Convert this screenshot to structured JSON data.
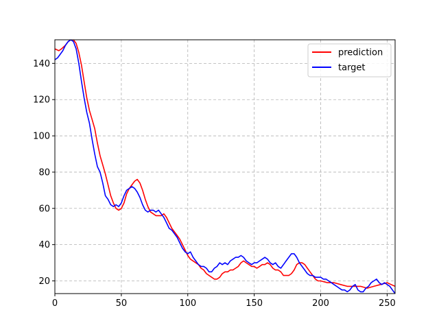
{
  "chart_data": {
    "type": "line",
    "title": "",
    "xlabel": "",
    "ylabel": "",
    "xlim": [
      0,
      256
    ],
    "ylim": [
      13,
      153
    ],
    "xticks": [
      0,
      50,
      100,
      150,
      200,
      250
    ],
    "yticks": [
      20,
      40,
      60,
      80,
      100,
      120,
      140
    ],
    "grid": true,
    "legend_position": "top-right",
    "series": [
      {
        "name": "prediction",
        "color": "#ff0000",
        "x": [
          0,
          3,
          5,
          8,
          10,
          12,
          14,
          16,
          18,
          20,
          22,
          24,
          26,
          28,
          30,
          32,
          34,
          36,
          38,
          40,
          42,
          44,
          46,
          48,
          50,
          52,
          54,
          56,
          58,
          60,
          62,
          64,
          66,
          68,
          70,
          72,
          74,
          76,
          78,
          80,
          82,
          84,
          86,
          88,
          90,
          92,
          94,
          96,
          98,
          100,
          102,
          104,
          106,
          108,
          110,
          112,
          114,
          116,
          118,
          120,
          122,
          124,
          126,
          128,
          130,
          132,
          134,
          136,
          138,
          140,
          142,
          144,
          146,
          148,
          150,
          152,
          154,
          156,
          158,
          160,
          162,
          164,
          166,
          168,
          170,
          172,
          174,
          176,
          178,
          180,
          182,
          184,
          186,
          188,
          190,
          192,
          194,
          196,
          198,
          200,
          205,
          210,
          215,
          220,
          225,
          230,
          235,
          240,
          245,
          250,
          253,
          256
        ],
        "y": [
          148,
          147,
          148,
          150,
          152,
          153,
          153,
          151,
          146,
          139,
          130,
          121,
          114,
          109,
          104,
          96,
          89,
          84,
          79,
          73,
          67,
          63,
          60,
          59,
          60,
          63,
          68,
          71,
          73,
          75,
          76,
          74,
          70,
          65,
          61,
          58,
          57,
          56,
          56,
          56,
          57,
          55,
          52,
          49,
          47,
          45,
          43,
          40,
          37,
          34,
          32,
          31,
          30,
          29,
          27,
          26,
          24,
          23,
          22,
          21,
          21,
          22,
          24,
          25,
          25,
          26,
          26,
          27,
          28,
          30,
          31,
          30,
          29,
          28,
          28,
          27,
          28,
          29,
          29,
          30,
          29,
          27,
          26,
          26,
          25,
          23,
          23,
          23,
          24,
          26,
          29,
          30,
          30,
          29,
          27,
          25,
          23,
          21,
          20,
          20,
          19,
          19,
          18,
          17,
          17,
          17,
          16,
          17,
          18,
          19,
          18,
          17
        ]
      },
      {
        "name": "target",
        "color": "#0000ff",
        "x": [
          0,
          2,
          4,
          6,
          8,
          10,
          12,
          14,
          16,
          18,
          20,
          22,
          24,
          26,
          28,
          30,
          32,
          34,
          36,
          38,
          40,
          42,
          44,
          46,
          48,
          50,
          52,
          54,
          56,
          58,
          60,
          62,
          64,
          66,
          68,
          70,
          72,
          74,
          76,
          78,
          80,
          82,
          84,
          86,
          88,
          90,
          92,
          94,
          96,
          98,
          100,
          102,
          104,
          106,
          108,
          110,
          112,
          114,
          116,
          118,
          120,
          122,
          124,
          126,
          128,
          130,
          132,
          134,
          136,
          138,
          140,
          142,
          144,
          146,
          148,
          150,
          152,
          154,
          156,
          158,
          160,
          162,
          164,
          166,
          168,
          170,
          172,
          174,
          176,
          178,
          180,
          182,
          184,
          186,
          188,
          190,
          192,
          194,
          196,
          198,
          200,
          202,
          204,
          206,
          208,
          210,
          212,
          214,
          216,
          218,
          220,
          222,
          224,
          226,
          228,
          230,
          232,
          234,
          236,
          238,
          240,
          242,
          244,
          246,
          248,
          250,
          252,
          254,
          256
        ],
        "y": [
          142,
          143,
          145,
          147,
          150,
          152,
          153,
          152,
          148,
          140,
          130,
          121,
          113,
          107,
          98,
          90,
          83,
          80,
          74,
          67,
          65,
          62,
          61,
          62,
          61,
          63,
          67,
          70,
          71,
          72,
          71,
          69,
          66,
          62,
          59,
          58,
          59,
          59,
          58,
          59,
          57,
          55,
          52,
          49,
          48,
          46,
          44,
          41,
          38,
          36,
          35,
          36,
          33,
          31,
          29,
          28,
          28,
          27,
          25,
          25,
          27,
          28,
          30,
          29,
          30,
          29,
          31,
          32,
          33,
          33,
          34,
          33,
          31,
          30,
          29,
          30,
          30,
          31,
          32,
          33,
          32,
          30,
          29,
          30,
          28,
          27,
          29,
          31,
          33,
          35,
          35,
          33,
          30,
          28,
          26,
          24,
          23,
          23,
          22,
          22,
          22,
          21,
          21,
          20,
          19,
          18,
          17,
          16,
          15,
          15,
          14,
          15,
          17,
          18,
          15,
          14,
          14,
          16,
          17,
          19,
          20,
          21,
          19,
          18,
          19,
          18,
          17,
          15,
          13
        ]
      }
    ]
  }
}
